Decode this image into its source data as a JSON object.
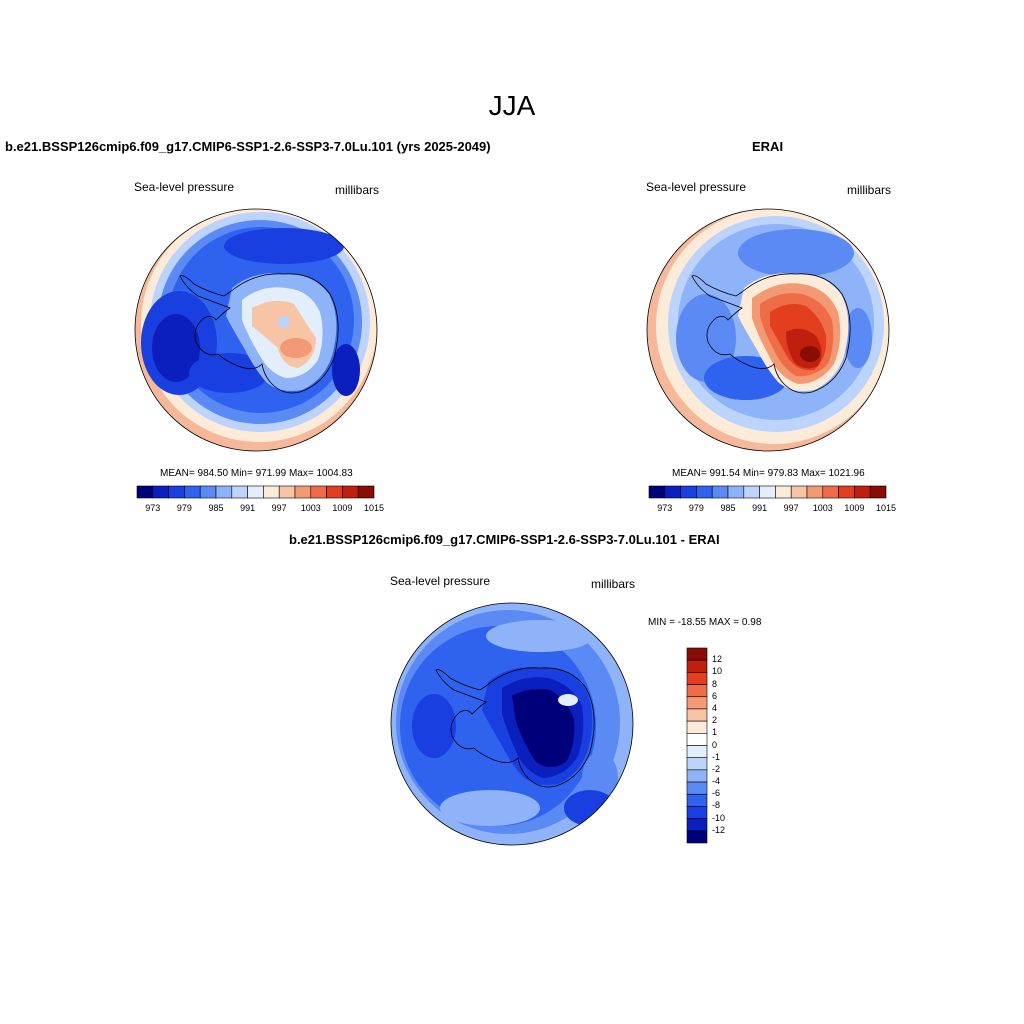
{
  "main_title": "JJA",
  "panels": [
    {
      "title": "b.e21.BSSP126cmip6.f09_g17.CMIP6-SSP1-2.6-SSP3-7.0Lu.101 (yrs 2025-2049)",
      "variable": "Sea-level pressure",
      "units": "millibars",
      "stats": "MEAN= 984.50  Min= 971.99  Max= 1004.83"
    },
    {
      "title": "ERAI",
      "variable": "Sea-level pressure",
      "units": "millibars",
      "stats": "MEAN= 991.54  Min= 979.83  Max= 1021.96"
    },
    {
      "title": "b.e21.BSSP126cmip6.f09_g17.CMIP6-SSP1-2.6-SSP3-7.0Lu.101 - ERAI",
      "variable": "Sea-level pressure",
      "units": "millibars",
      "stats": "MIN = -18.55 MAX =   0.98"
    }
  ],
  "colorbar_horizontal": {
    "labels": [
      "973",
      "979",
      "985",
      "991",
      "997",
      "1003",
      "1009",
      "1015"
    ],
    "colors": [
      "#00007a",
      "#0b1fbf",
      "#1a3fe0",
      "#2f62ee",
      "#5b8af5",
      "#8fb3f8",
      "#bcd4fb",
      "#e3eefc",
      "#fdebd9",
      "#f8c4a6",
      "#f39a75",
      "#ee6d48",
      "#e33e1e",
      "#c01f0d",
      "#8a0d05"
    ]
  },
  "colorbar_vertical": {
    "labels": [
      "12",
      "10",
      "8",
      "6",
      "4",
      "2",
      "1",
      "0",
      "-1",
      "-2",
      "-4",
      "-6",
      "-8",
      "-10",
      "-12"
    ],
    "colors": [
      "#8a0d05",
      "#c01f0d",
      "#e33e1e",
      "#ee6d48",
      "#f39a75",
      "#f8c4a6",
      "#fdebd9",
      "#ffffff",
      "#e3eefc",
      "#bcd4fb",
      "#8fb3f8",
      "#5b8af5",
      "#2f62ee",
      "#1a3fe0",
      "#0b1fbf",
      "#00007a"
    ]
  },
  "map_data": {
    "projection": "south-polar-stereographic",
    "region": "Antarctica and Southern Ocean",
    "season": "JJA"
  }
}
